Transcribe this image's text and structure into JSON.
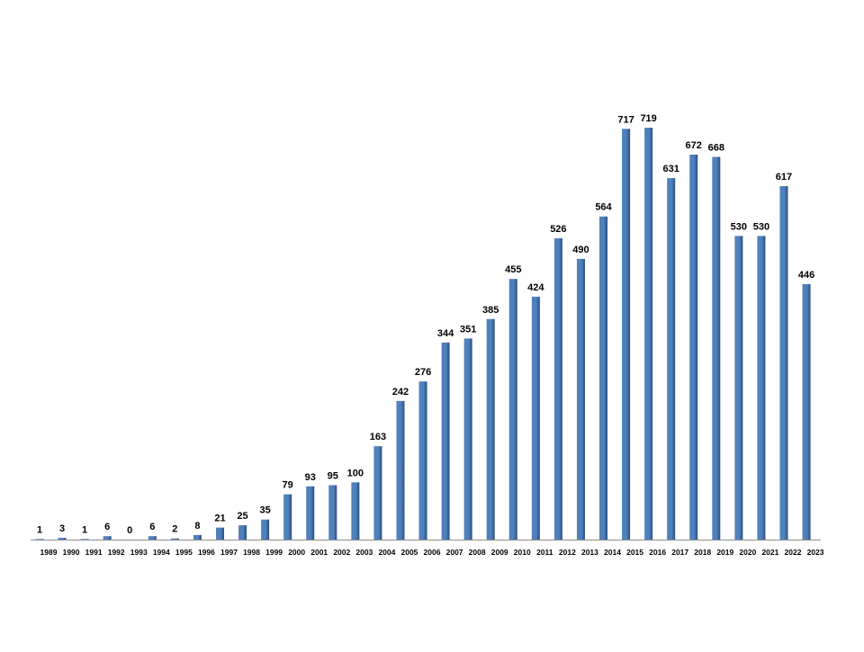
{
  "chart_data": {
    "type": "bar",
    "categories": [
      "1989",
      "1990",
      "1991",
      "1992",
      "1993",
      "1994",
      "1995",
      "1996",
      "1997",
      "1998",
      "1999",
      "2000",
      "2001",
      "2002",
      "2003",
      "2004",
      "2005",
      "2006",
      "2007",
      "2008",
      "2009",
      "2010",
      "2011",
      "2012",
      "2013",
      "2014",
      "2015",
      "2016",
      "2017",
      "2018",
      "2019",
      "2020",
      "2021",
      "2022",
      "2023"
    ],
    "values": [
      1,
      3,
      1,
      6,
      0,
      6,
      2,
      8,
      21,
      25,
      35,
      79,
      93,
      95,
      100,
      163,
      242,
      276,
      344,
      351,
      385,
      455,
      424,
      526,
      490,
      564,
      717,
      719,
      631,
      672,
      668,
      530,
      530,
      617,
      446
    ],
    "data_labels": [
      "1",
      "3",
      "1",
      "6",
      "0",
      "6",
      "2",
      "8",
      "21",
      "25",
      "35",
      "79",
      "93",
      "95",
      "100",
      "163",
      "242",
      "276",
      "344",
      "351",
      "385",
      "455",
      "424",
      "526",
      "490",
      "564",
      "717",
      "719",
      "631",
      "672",
      "668",
      "530",
      "530",
      "617",
      "446"
    ],
    "title": "",
    "xlabel": "",
    "ylabel": "",
    "ylim": [
      0,
      719
    ],
    "grid": false,
    "legend": "none",
    "colors": {
      "bar_light": "#4f81bd",
      "bar_dark": "#2b4f7f",
      "axis": "#8c8c8c",
      "text": "#000000"
    }
  }
}
